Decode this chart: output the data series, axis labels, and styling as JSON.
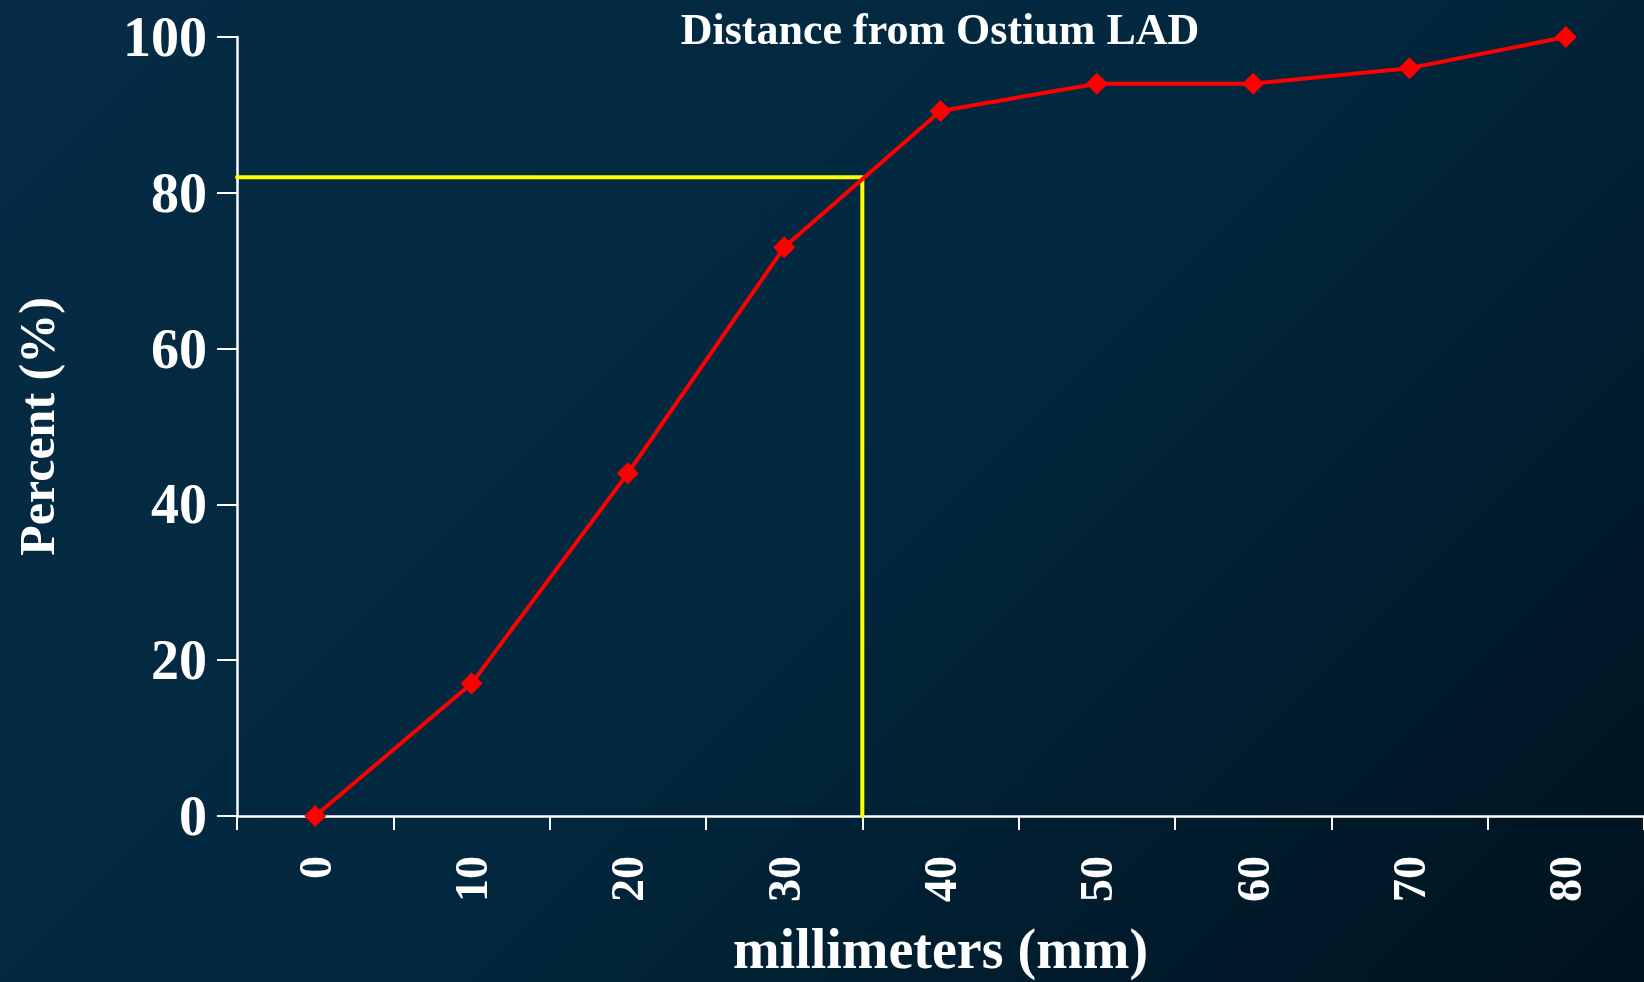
{
  "chart_data": {
    "type": "line",
    "title": "Distance from Ostium LAD",
    "xlabel": "millimeters (mm)",
    "ylabel": "Percent (%)",
    "xlim": [
      -5,
      85
    ],
    "xticks": [
      {
        "value": -5,
        "label": null
      },
      0,
      {
        "value": 5,
        "label": null
      },
      10,
      {
        "value": 15,
        "label": null
      },
      20,
      {
        "value": 25,
        "label": null
      },
      30,
      {
        "value": 35,
        "label": null
      },
      40,
      {
        "value": 45,
        "label": null
      },
      50,
      {
        "value": 55,
        "label": null
      },
      60,
      {
        "value": 65,
        "label": null
      },
      70,
      {
        "value": 75,
        "label": null
      },
      80,
      {
        "value": 85,
        "label": null
      }
    ],
    "ylim": [
      0,
      100
    ],
    "yticks": [
      0,
      20,
      40,
      60,
      80,
      100
    ],
    "grid": false,
    "series": [
      {
        "color": "#ff0000",
        "marker": "diamond",
        "x": [
          0,
          10,
          20,
          30,
          40,
          50,
          60,
          70,
          80
        ],
        "values": [
          0,
          17,
          44,
          73,
          90.5,
          94,
          94,
          96,
          100
        ]
      },
      {
        "color": "#ffff00",
        "marker": "none",
        "x": [
          -5,
          35,
          35
        ],
        "values": [
          82,
          82,
          0
        ]
      }
    ]
  }
}
